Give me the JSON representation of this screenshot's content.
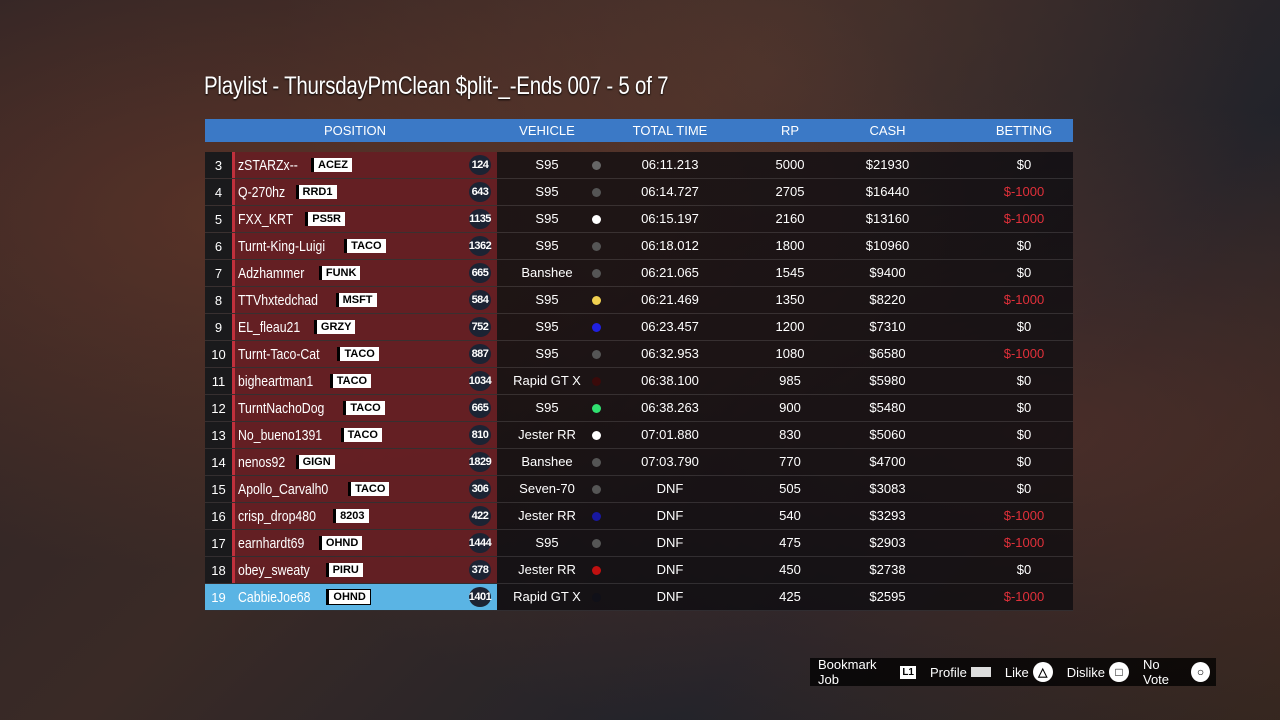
{
  "title": "Playlist - ThursdayPmClean $plit-_-Ends 007 - 5 of 7",
  "columns": {
    "position": "POSITION",
    "vehicle": "VEHICLE",
    "total_time": "TOTAL TIME",
    "rp": "RP",
    "cash": "CASH",
    "betting": "BETTING"
  },
  "colors": {
    "header": "#3b79c6",
    "player_panel": "#78232a",
    "highlight": "#5ab4e4",
    "negative_bet": "#e0303a"
  },
  "rows": [
    {
      "pos": "3",
      "name": "zSTARZx--",
      "crew": "ACEZ",
      "level": "124",
      "vehicle": "S95",
      "dot": "#666666",
      "time": "06:11.213",
      "rp": "5000",
      "cash": "$21930",
      "bet": "$0"
    },
    {
      "pos": "4",
      "name": "Q-270hz",
      "crew": "RRD1",
      "level": "643",
      "vehicle": "S95",
      "dot": "#555555",
      "time": "06:14.727",
      "rp": "2705",
      "cash": "$16440",
      "bet": "$-1000"
    },
    {
      "pos": "5",
      "name": "FXX_KRT",
      "crew": "PS5R",
      "level": "1135",
      "vehicle": "S95",
      "dot": "#ffffff",
      "time": "06:15.197",
      "rp": "2160",
      "cash": "$13160",
      "bet": "$-1000"
    },
    {
      "pos": "6",
      "name": "Turnt-King-Luigi",
      "crew": "TACO",
      "level": "1362",
      "vehicle": "S95",
      "dot": "#555555",
      "time": "06:18.012",
      "rp": "1800",
      "cash": "$10960",
      "bet": "$0"
    },
    {
      "pos": "7",
      "name": "Adzhammer",
      "crew": "FUNK",
      "level": "665",
      "vehicle": "Banshee",
      "dot": "#555555",
      "time": "06:21.065",
      "rp": "1545",
      "cash": "$9400",
      "bet": "$0"
    },
    {
      "pos": "8",
      "name": "TTVhxtedchad",
      "crew": "MSFT",
      "level": "584",
      "vehicle": "S95",
      "dot": "#f0d050",
      "time": "06:21.469",
      "rp": "1350",
      "cash": "$8220",
      "bet": "$-1000"
    },
    {
      "pos": "9",
      "name": "EL_fleau21",
      "crew": "GRZY",
      "level": "752",
      "vehicle": "S95",
      "dot": "#2020e0",
      "time": "06:23.457",
      "rp": "1200",
      "cash": "$7310",
      "bet": "$0"
    },
    {
      "pos": "10",
      "name": "Turnt-Taco-Cat",
      "crew": "TACO",
      "level": "887",
      "vehicle": "S95",
      "dot": "#555555",
      "time": "06:32.953",
      "rp": "1080",
      "cash": "$6580",
      "bet": "$-1000"
    },
    {
      "pos": "11",
      "name": "bigheartman1",
      "crew": "TACO",
      "level": "1034",
      "vehicle": "Rapid GT X",
      "dot": "#3a0a0a",
      "time": "06:38.100",
      "rp": "985",
      "cash": "$5980",
      "bet": "$0"
    },
    {
      "pos": "12",
      "name": "TurntNachoDog",
      "crew": "TACO",
      "level": "665",
      "vehicle": "S95",
      "dot": "#30e070",
      "time": "06:38.263",
      "rp": "900",
      "cash": "$5480",
      "bet": "$0"
    },
    {
      "pos": "13",
      "name": "No_bueno1391",
      "crew": "TACO",
      "level": "810",
      "vehicle": "Jester RR",
      "dot": "#ffffff",
      "time": "07:01.880",
      "rp": "830",
      "cash": "$5060",
      "bet": "$0"
    },
    {
      "pos": "14",
      "name": "nenos92",
      "crew": "GIGN",
      "level": "1829",
      "vehicle": "Banshee",
      "dot": "#555555",
      "time": "07:03.790",
      "rp": "770",
      "cash": "$4700",
      "bet": "$0"
    },
    {
      "pos": "15",
      "name": "Apollo_Carvalh0",
      "crew": "TACO",
      "level": "306",
      "vehicle": "Seven-70",
      "dot": "#555555",
      "time": "DNF",
      "rp": "505",
      "cash": "$3083",
      "bet": "$0"
    },
    {
      "pos": "16",
      "name": "crisp_drop480",
      "crew": "8203",
      "level": "422",
      "vehicle": "Jester RR",
      "dot": "#1818a0",
      "time": "DNF",
      "rp": "540",
      "cash": "$3293",
      "bet": "$-1000"
    },
    {
      "pos": "17",
      "name": "earnhardt69",
      "crew": "OHND",
      "level": "1444",
      "vehicle": "S95",
      "dot": "#555555",
      "time": "DNF",
      "rp": "475",
      "cash": "$2903",
      "bet": "$-1000"
    },
    {
      "pos": "18",
      "name": "obey_sweaty",
      "crew": "PIRU",
      "level": "378",
      "vehicle": "Jester RR",
      "dot": "#c01010",
      "time": "DNF",
      "rp": "450",
      "cash": "$2738",
      "bet": "$0"
    },
    {
      "pos": "19",
      "name": "CabbieJoe68",
      "crew": "OHND",
      "level": "1401",
      "vehicle": "Rapid GT X",
      "dot": "#101018",
      "time": "DNF",
      "rp": "425",
      "cash": "$2595",
      "bet": "$-1000",
      "me": true
    }
  ],
  "controls": [
    {
      "label": "Bookmark Job",
      "key": "L1",
      "icon": "l1-button-icon"
    },
    {
      "label": "Profile",
      "key": "",
      "icon": "touchpad-icon"
    },
    {
      "label": "Like",
      "key": "△",
      "icon": "triangle-button-icon"
    },
    {
      "label": "Dislike",
      "key": "□",
      "icon": "square-button-icon"
    },
    {
      "label": "No Vote",
      "key": "○",
      "icon": "circle-button-icon"
    }
  ]
}
